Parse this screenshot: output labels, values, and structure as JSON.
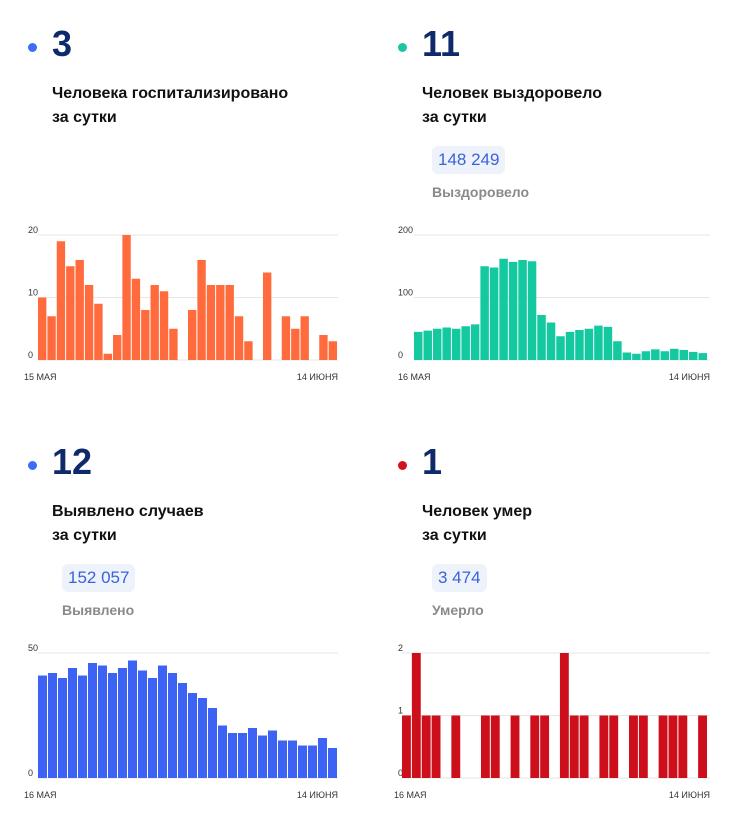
{
  "panels": [
    {
      "id": "hospitalized",
      "big_number": "3",
      "desc_line1": "Человека госпитализировано",
      "desc_line2": "за сутки",
      "total": "",
      "total_label": "",
      "dot_color": "#3b6ef5",
      "bar_color": "#ff6b3d"
    },
    {
      "id": "recovered",
      "big_number": "11",
      "desc_line1": "Человек выздоровело",
      "desc_line2": "за сутки",
      "total": "148 249",
      "total_label": "Выздоровело",
      "dot_color": "#1cc6a3",
      "bar_color": "#14c8a0"
    },
    {
      "id": "cases",
      "big_number": "12",
      "desc_line1": "Выявлено случаев",
      "desc_line2": "за сутки",
      "total": "152 057",
      "total_label": "Выявлено",
      "dot_color": "#3b6ef5",
      "bar_color": "#3d63f5"
    },
    {
      "id": "deaths",
      "big_number": "1",
      "desc_line1": "Человек умер",
      "desc_line2": "за сутки",
      "total": "3 474",
      "total_label": "Умерло",
      "dot_color": "#d0141e",
      "bar_color": "#cc0f1a"
    }
  ],
  "chart_data": [
    {
      "type": "bar",
      "ylim": [
        0,
        20
      ],
      "yticks": [
        0,
        10,
        20
      ],
      "x_start_label": "15 МАЯ",
      "x_end_label": "14 ИЮНЯ",
      "values": [
        10,
        7,
        19,
        15,
        16,
        12,
        9,
        1,
        4,
        20,
        13,
        8,
        12,
        11,
        5,
        0,
        8,
        16,
        12,
        12,
        12,
        7,
        3,
        0,
        14,
        0,
        7,
        5,
        7,
        0,
        4,
        3
      ]
    },
    {
      "type": "bar",
      "ylim": [
        0,
        200
      ],
      "yticks": [
        0,
        100,
        200
      ],
      "x_start_label": "16 МАЯ",
      "x_end_label": "14 ИЮНЯ",
      "values": [
        45,
        47,
        50,
        52,
        50,
        54,
        57,
        150,
        148,
        162,
        157,
        160,
        158,
        72,
        60,
        38,
        45,
        48,
        50,
        55,
        53,
        30,
        12,
        10,
        14,
        17,
        14,
        18,
        16,
        13,
        11
      ]
    },
    {
      "type": "bar",
      "ylim": [
        0,
        50
      ],
      "yticks": [
        0,
        50
      ],
      "x_start_label": "16 МАЯ",
      "x_end_label": "14 ИЮНЯ",
      "values": [
        41,
        42,
        40,
        44,
        41,
        46,
        45,
        42,
        44,
        47,
        43,
        40,
        45,
        42,
        38,
        34,
        32,
        28,
        21,
        18,
        18,
        20,
        17,
        19,
        15,
        15,
        13,
        13,
        16,
        12
      ]
    },
    {
      "type": "bar",
      "ylim": [
        0,
        2
      ],
      "yticks": [
        0,
        1,
        2
      ],
      "x_start_label": "16 МАЯ",
      "x_end_label": "14 ИЮНЯ",
      "values": [
        1,
        2,
        1,
        1,
        0,
        1,
        0,
        0,
        1,
        1,
        0,
        1,
        0,
        1,
        1,
        0,
        2,
        1,
        1,
        0,
        1,
        1,
        0,
        1,
        1,
        0,
        1,
        1,
        1,
        0,
        1
      ]
    }
  ]
}
